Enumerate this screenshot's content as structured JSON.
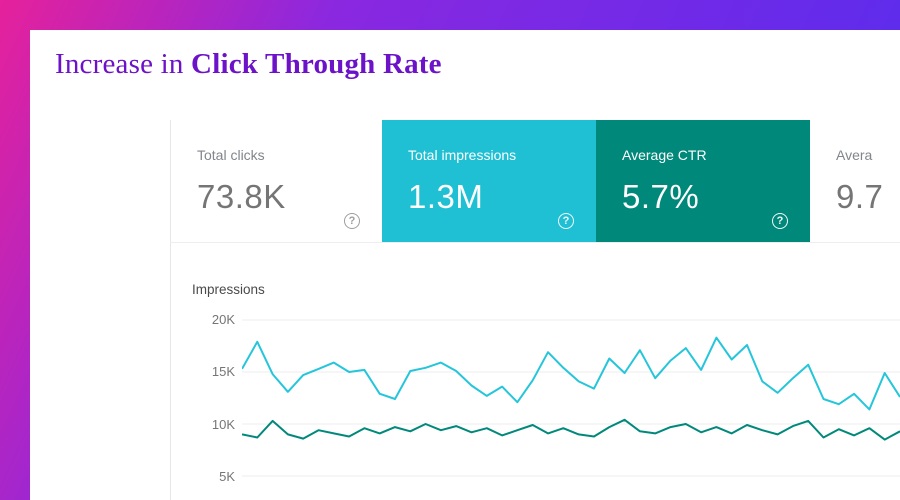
{
  "theme": {
    "frame_gradient": [
      "#e6219b",
      "#8a28e0",
      "#4f2df0"
    ],
    "title_color": "#6c12c9",
    "panel_bg": "#ffffff"
  },
  "header": {
    "title_regular": "Increase in ",
    "title_bold": "Click Through Rate"
  },
  "ui": {
    "help_glyph": "?"
  },
  "stats": [
    {
      "label": "Total clicks",
      "value": "73.8K"
    },
    {
      "label": "Total impressions",
      "value": "1.3M",
      "bg": "#1fc0d4"
    },
    {
      "label": "Average CTR",
      "value": "5.7%",
      "bg": "#00897b"
    },
    {
      "label": "Avera",
      "value": "9.7"
    }
  ],
  "chart_data": {
    "type": "line",
    "title": "Impressions",
    "xlabel": "",
    "ylabel": "",
    "ylim": [
      4.5,
      20.5
    ],
    "grid": true,
    "legend_position": "none",
    "y_ticks": [
      {
        "label": "20K",
        "value": 20
      },
      {
        "label": "15K",
        "value": 15
      },
      {
        "label": "10K",
        "value": 10
      },
      {
        "label": "5K",
        "value": 5
      }
    ],
    "units": "thousands",
    "series": [
      {
        "name": "series_cyan",
        "color": "#25c5da",
        "values": [
          15.3,
          17.9,
          14.8,
          13.1,
          14.7,
          15.3,
          15.9,
          15.0,
          15.2,
          12.9,
          12.4,
          15.1,
          15.4,
          15.9,
          15.1,
          13.7,
          12.7,
          13.6,
          12.1,
          14.2,
          16.9,
          15.4,
          14.1,
          13.4,
          16.3,
          14.9,
          17.1,
          14.4,
          16.1,
          17.3,
          15.2,
          18.3,
          16.2,
          17.6,
          14.1,
          13.0,
          14.4,
          15.7,
          12.4,
          11.9,
          12.9,
          11.4,
          14.9,
          12.6
        ]
      },
      {
        "name": "series_teal",
        "color": "#00897b",
        "values": [
          9.0,
          8.7,
          10.3,
          9.0,
          8.6,
          9.4,
          9.1,
          8.8,
          9.6,
          9.1,
          9.7,
          9.3,
          10.0,
          9.4,
          9.8,
          9.2,
          9.6,
          8.9,
          9.4,
          9.9,
          9.1,
          9.6,
          9.0,
          8.8,
          9.7,
          10.4,
          9.3,
          9.1,
          9.7,
          10.0,
          9.2,
          9.7,
          9.1,
          9.9,
          9.4,
          9.0,
          9.8,
          10.3,
          8.7,
          9.5,
          8.9,
          9.6,
          8.5,
          9.3
        ]
      }
    ]
  }
}
